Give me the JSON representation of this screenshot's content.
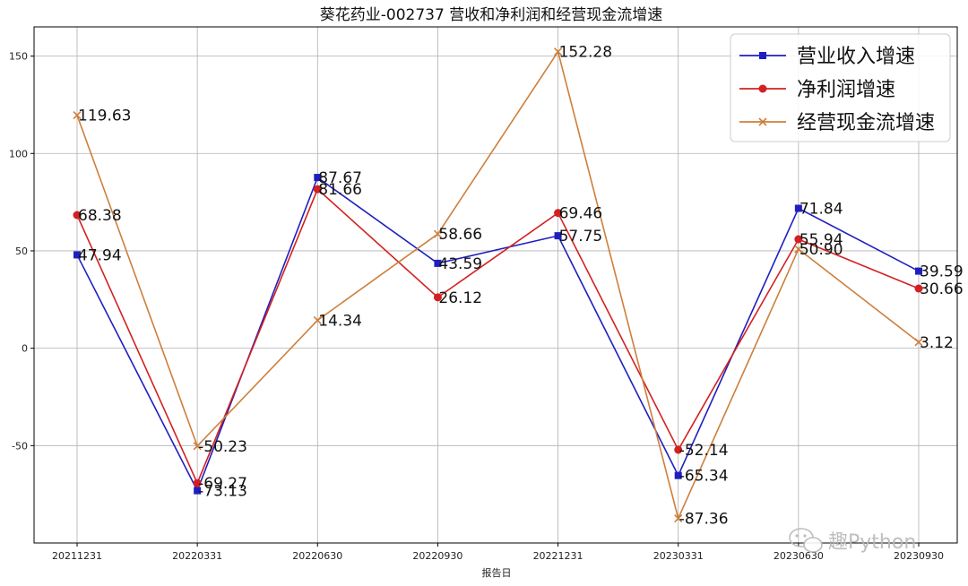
{
  "chart_data": {
    "type": "line",
    "title": "葵花药业-002737 营收和净利润和经营现金流增速",
    "xlabel": "报告日",
    "ylabel": "",
    "categories": [
      "20211231",
      "20220331",
      "20220630",
      "20220930",
      "20221231",
      "20230331",
      "20230630",
      "20230930"
    ],
    "ylim": [
      -100,
      165
    ],
    "yticks": [
      -50,
      0,
      50,
      100,
      150
    ],
    "grid": true,
    "legend_position": "top-right",
    "series": [
      {
        "name": "营业收入增速",
        "color": "#1f1fbf",
        "marker": "square",
        "values": [
          47.94,
          -73.13,
          87.67,
          43.59,
          57.75,
          -65.34,
          71.84,
          39.59
        ],
        "labels": [
          "47.94",
          "-73.13",
          "87.67",
          "43.59",
          "57.75",
          "-65.34",
          "71.84",
          "39.59"
        ]
      },
      {
        "name": "净利润增速",
        "color": "#d42020",
        "marker": "circle",
        "values": [
          68.38,
          -69.27,
          81.66,
          26.12,
          69.46,
          -52.14,
          55.94,
          30.66
        ],
        "labels": [
          "68.38",
          "-69.27",
          "81.66",
          "26.12",
          "69.46",
          "-52.14",
          "55.94",
          "30.66"
        ]
      },
      {
        "name": "经营现金流增速",
        "color": "#cd7f3a",
        "marker": "x",
        "values": [
          119.63,
          -50.23,
          14.34,
          58.66,
          152.28,
          -87.36,
          50.9,
          3.12
        ],
        "labels": [
          "119.63",
          "-50.23",
          "14.34",
          "58.66",
          "152.28",
          "-87.36",
          "50.90",
          "3.12"
        ]
      }
    ]
  },
  "watermark": {
    "text": "趣Python",
    "icon": "wechat-icon"
  }
}
